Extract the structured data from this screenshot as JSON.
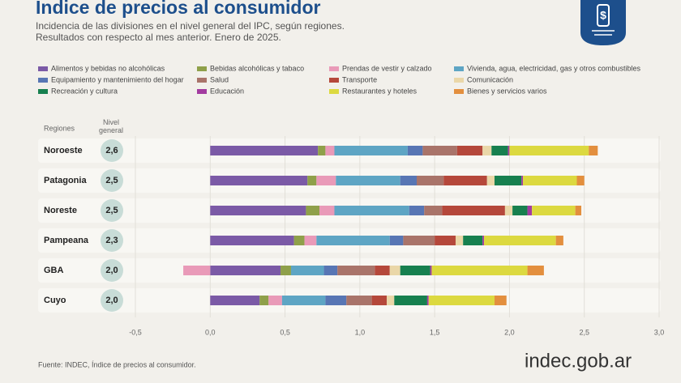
{
  "chart_data": {
    "type": "stacked-barh",
    "title": "Indice de precios al consumidor",
    "subtitle": [
      "Incidencia de las divisiones en el nivel general del IPC, según regiones.",
      "Resultados con respecto al mes anterior. Enero de 2025."
    ],
    "category_header": "Regiones",
    "level_header": "Nivel general",
    "categories": [
      "Noroeste",
      "Patagonia",
      "Noreste",
      "Pampeana",
      "GBA",
      "Cuyo"
    ],
    "general_level": {
      "values": [
        2.6,
        2.5,
        2.5,
        2.3,
        2.0,
        2.0
      ],
      "value_labels": [
        "2,6",
        "2,5",
        "2,5",
        "2,3",
        "2,0",
        "2,0"
      ]
    },
    "series": [
      {
        "name": "Alimentos y bebidas no alcohólicas",
        "color": "#7b5aa6",
        "values": [
          0.72,
          0.65,
          0.64,
          0.56,
          0.47,
          0.33
        ]
      },
      {
        "name": "Bebidas alcohólicas y tabaco",
        "color": "#8fa04a",
        "values": [
          0.05,
          0.06,
          0.09,
          0.07,
          0.07,
          0.06
        ]
      },
      {
        "name": "Prendas de vestir y calzado",
        "color": "#e99ab8",
        "values": [
          0.06,
          0.13,
          0.1,
          0.08,
          -0.18,
          0.09
        ]
      },
      {
        "name": "Vivienda, agua, electricidad, gas y otros combustibles",
        "color": "#5ea5c4",
        "values": [
          0.49,
          0.43,
          0.5,
          0.49,
          0.22,
          0.29
        ]
      },
      {
        "name": "Equipamiento y mantenimiento del hogar",
        "color": "#5876b4",
        "values": [
          0.1,
          0.11,
          0.1,
          0.09,
          0.09,
          0.14
        ]
      },
      {
        "name": "Salud",
        "color": "#a9746a",
        "values": [
          0.23,
          0.18,
          0.12,
          0.21,
          0.25,
          0.17
        ]
      },
      {
        "name": "Transporte",
        "color": "#b5483b",
        "values": [
          0.17,
          0.29,
          0.42,
          0.14,
          0.1,
          0.1
        ]
      },
      {
        "name": "Comunicación",
        "color": "#ead7a8",
        "values": [
          0.06,
          0.05,
          0.05,
          0.05,
          0.07,
          0.05
        ]
      },
      {
        "name": "Recreación y cultura",
        "color": "#17804f",
        "values": [
          0.11,
          0.18,
          0.1,
          0.13,
          0.2,
          0.22
        ]
      },
      {
        "name": "Educación",
        "color": "#a33ca0",
        "values": [
          0.01,
          0.01,
          0.03,
          0.01,
          0.01,
          0.01
        ]
      },
      {
        "name": "Restaurantes y hoteles",
        "color": "#dcd940",
        "values": [
          0.53,
          0.36,
          0.29,
          0.48,
          0.64,
          0.44
        ]
      },
      {
        "name": "Bienes y servicios varios",
        "color": "#e38f3e",
        "values": [
          0.06,
          0.05,
          0.04,
          0.05,
          0.11,
          0.08
        ]
      }
    ],
    "xlim": [
      -0.5,
      3.0
    ],
    "xticks": [
      {
        "value": -0.5,
        "label": "-0,5"
      },
      {
        "value": 0,
        "label": "0,0"
      },
      {
        "value": 0.5,
        "label": "0,5"
      },
      {
        "value": 1.0,
        "label": "1,0"
      },
      {
        "value": 1.5,
        "label": "1,5"
      },
      {
        "value": 2.0,
        "label": "2,0"
      },
      {
        "value": 2.5,
        "label": "2,5"
      },
      {
        "value": 3.0,
        "label": "3,0"
      }
    ],
    "grid": true,
    "source": "Fuente: INDEC, Índice de precios al consumidor.",
    "logo": "indec.gob.ar"
  }
}
